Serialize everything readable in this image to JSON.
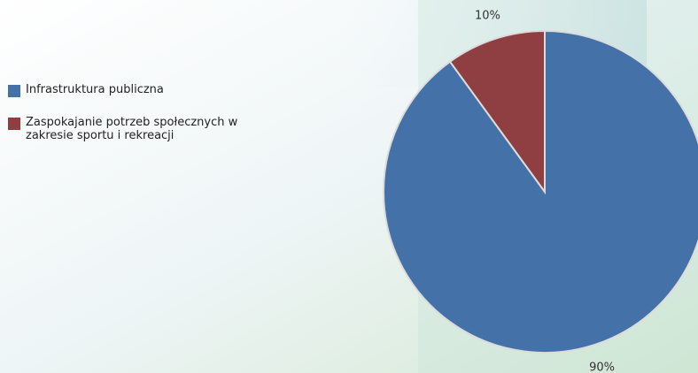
{
  "chart_data": {
    "type": "pie",
    "categories": [
      "Infrastruktura publiczna",
      "Zaspokajanie potrzeb społecznych w zakresie sportu i rekreacji"
    ],
    "values": [
      90,
      10
    ],
    "value_labels": [
      "90%",
      "10%"
    ],
    "colors": [
      "#4472a8",
      "#8f3f42"
    ],
    "legend": "left"
  }
}
